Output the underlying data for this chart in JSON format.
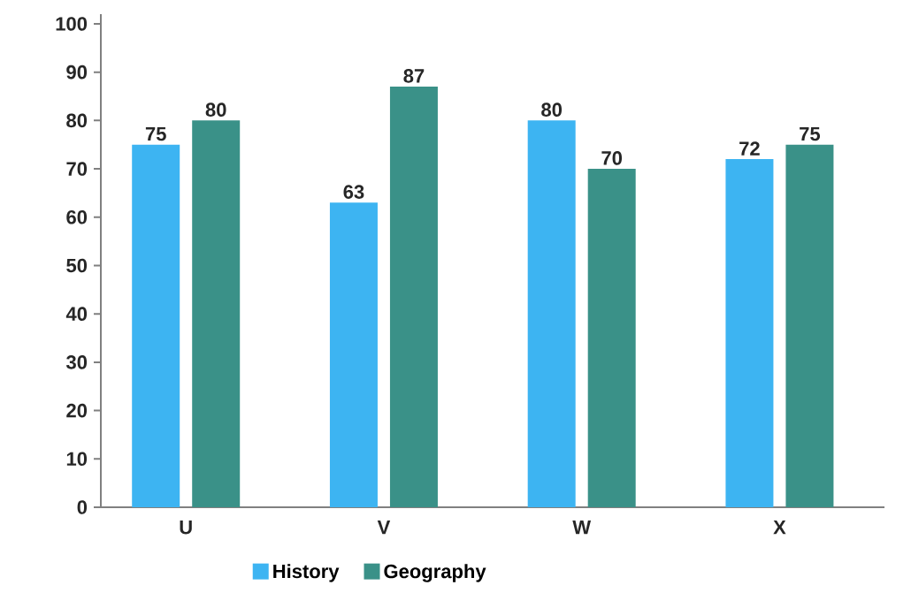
{
  "chart_data": {
    "type": "bar",
    "categories": [
      "U",
      "V",
      "W",
      "X"
    ],
    "series": [
      {
        "name": "History",
        "color": "#3db4f2",
        "values": [
          75,
          63,
          80,
          72
        ]
      },
      {
        "name": "Geography",
        "color": "#3a9188",
        "values": [
          80,
          87,
          70,
          75
        ]
      }
    ],
    "ylim": [
      0,
      102
    ],
    "yticks": [
      0,
      10,
      20,
      30,
      40,
      50,
      60,
      70,
      80,
      90,
      100
    ],
    "data_labels": true,
    "grid": false,
    "legend": "bottom"
  }
}
